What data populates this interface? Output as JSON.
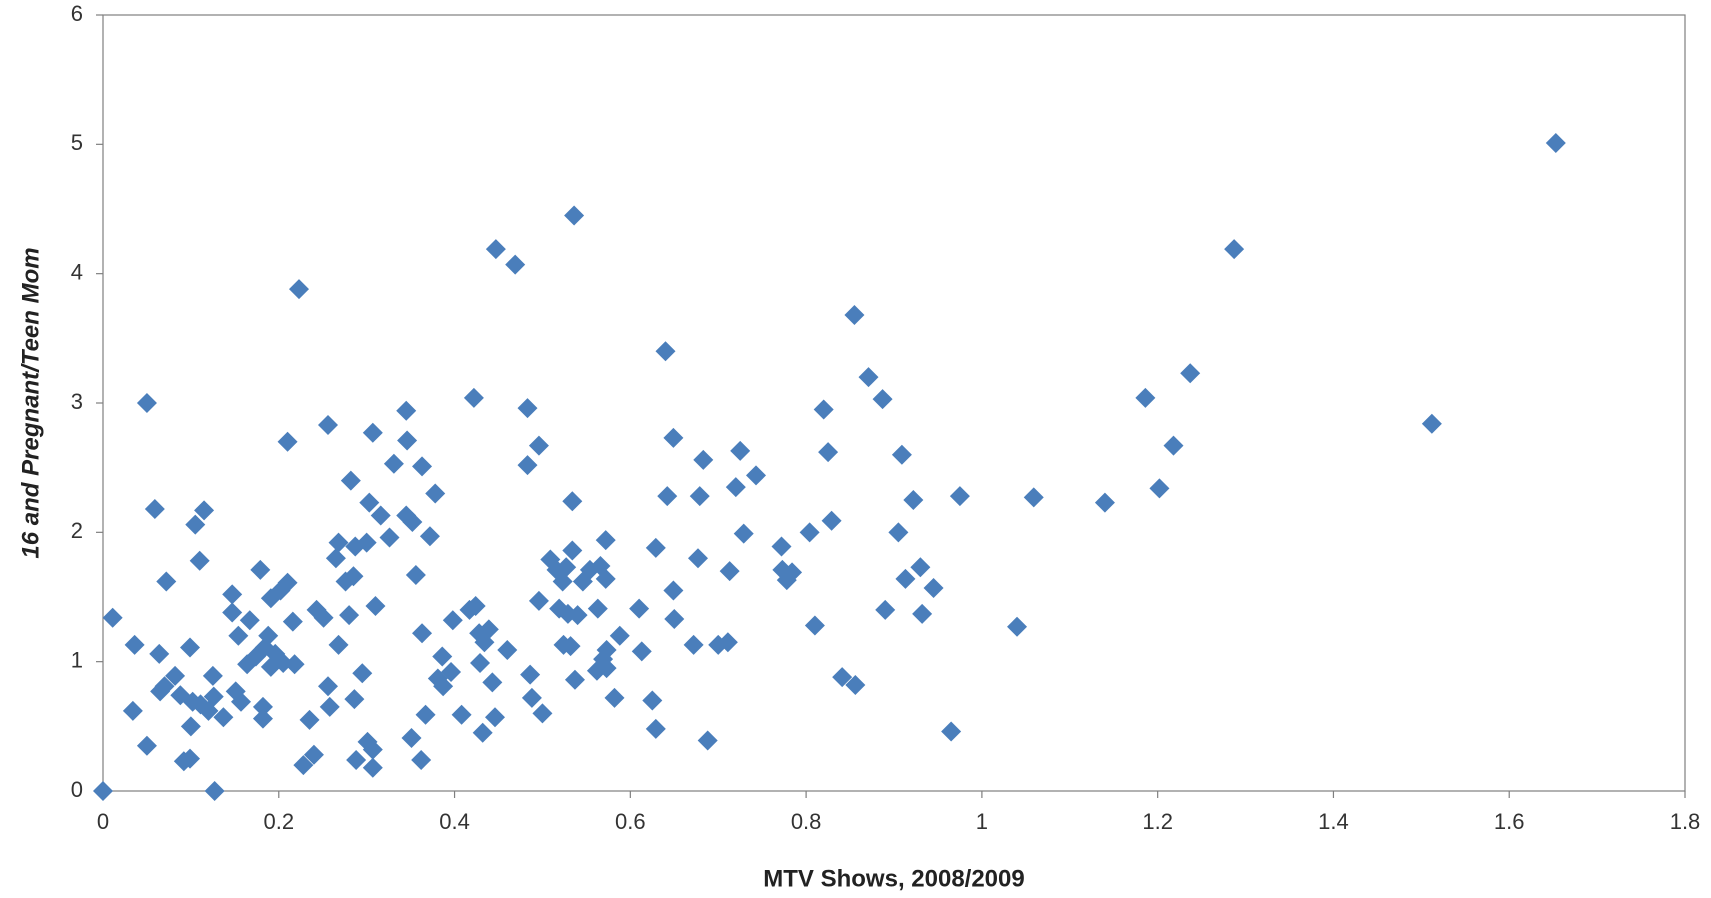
{
  "chart_data": {
    "type": "scatter",
    "x_label": "MTV Shows, 2008/2009",
    "y_label": "16 and Pregnant/Teen Mom",
    "color": "#4a7ebb",
    "xlim": [
      0,
      1.8
    ],
    "xticks": [
      0,
      0.2,
      0.4,
      0.6,
      0.8,
      1,
      1.2,
      1.4,
      1.6,
      1.8
    ],
    "ylim": [
      0,
      6
    ],
    "yticks": [
      0,
      1,
      2,
      3,
      4,
      5,
      6
    ],
    "x": [
      0,
      0.011,
      0.036,
      0.034,
      0.05,
      0.05,
      0.059,
      0.064,
      0.065,
      0.072,
      0.07,
      0.082,
      0.088,
      0.092,
      0.099,
      0.099,
      0.1,
      0.105,
      0.11,
      0.115,
      0.102,
      0.111,
      0.12,
      0.125,
      0.127,
      0.126,
      0.137,
      0.147,
      0.147,
      0.151,
      0.154,
      0.157,
      0.164,
      0.167,
      0.174,
      0.179,
      0.182,
      0.182,
      0.184,
      0.188,
      0.191,
      0.191,
      0.196,
      0.202,
      0.205,
      0.21,
      0.21,
      0.216,
      0.218,
      0.223,
      0.228,
      0.235,
      0.24,
      0.243,
      0.251,
      0.256,
      0.256,
      0.258,
      0.265,
      0.268,
      0.268,
      0.276,
      0.28,
      0.282,
      0.285,
      0.286,
      0.287,
      0.288,
      0.295,
      0.3,
      0.301,
      0.303,
      0.307,
      0.307,
      0.307,
      0.31,
      0.316,
      0.326,
      0.331,
      0.345,
      0.346,
      0.345,
      0.352,
      0.351,
      0.356,
      0.363,
      0.363,
      0.362,
      0.367,
      0.372,
      0.378,
      0.381,
      0.386,
      0.387,
      0.396,
      0.398,
      0.408,
      0.417,
      0.422,
      0.424,
      0.428,
      0.429,
      0.432,
      0.434,
      0.439,
      0.443,
      0.446,
      0.447,
      0.46,
      0.469,
      0.483,
      0.483,
      0.486,
      0.488,
      0.496,
      0.496,
      0.5,
      0.509,
      0.516,
      0.519,
      0.523,
      0.524,
      0.527,
      0.529,
      0.532,
      0.534,
      0.534,
      0.536,
      0.537,
      0.54,
      0.546,
      0.554,
      0.562,
      0.563,
      0.566,
      0.569,
      0.572,
      0.572,
      0.573,
      0.573,
      0.582,
      0.588,
      0.61,
      0.613,
      0.625,
      0.629,
      0.629,
      0.64,
      0.642,
      0.649,
      0.649,
      0.65,
      0.672,
      0.677,
      0.679,
      0.683,
      0.688,
      0.7,
      0.711,
      0.713,
      0.72,
      0.725,
      0.729,
      0.743,
      0.772,
      0.773,
      0.778,
      0.784,
      0.804,
      0.81,
      0.82,
      0.825,
      0.829,
      0.841,
      0.855,
      0.856,
      0.871,
      0.887,
      0.89,
      0.905,
      0.909,
      0.913,
      0.922,
      0.93,
      0.932,
      0.945,
      0.965,
      0.975,
      1.04,
      1.059,
      1.14,
      1.186,
      1.202,
      1.218,
      1.237,
      1.287,
      1.512,
      1.653
    ],
    "y": [
      0,
      1.34,
      1.13,
      0.62,
      3.0,
      0.35,
      2.18,
      1.06,
      0.77,
      1.62,
      0.81,
      0.89,
      0.74,
      0.23,
      1.11,
      0.25,
      0.5,
      2.06,
      1.78,
      2.17,
      0.69,
      0.67,
      0.62,
      0.89,
      0,
      0.73,
      0.57,
      1.52,
      1.38,
      0.77,
      1.2,
      0.69,
      0.98,
      1.32,
      1.04,
      1.71,
      0.65,
      0.56,
      1.11,
      1.2,
      1.49,
      0.96,
      1.06,
      1.55,
      0.99,
      1.61,
      2.7,
      1.31,
      0.98,
      3.88,
      0.2,
      0.55,
      0.28,
      1.4,
      1.34,
      2.83,
      0.81,
      0.65,
      1.8,
      1.92,
      1.13,
      1.62,
      1.36,
      2.4,
      1.66,
      0.71,
      1.89,
      0.24,
      0.91,
      1.92,
      0.38,
      2.23,
      2.77,
      0.32,
      0.18,
      1.43,
      2.13,
      1.96,
      2.53,
      2.94,
      2.71,
      2.13,
      2.08,
      0.41,
      1.67,
      2.51,
      1.22,
      0.24,
      0.59,
      1.97,
      2.3,
      0.87,
      1.04,
      0.81,
      0.92,
      1.32,
      0.59,
      1.4,
      3.04,
      1.43,
      1.22,
      0.99,
      0.45,
      1.15,
      1.25,
      0.84,
      0.57,
      4.19,
      1.09,
      4.07,
      2.96,
      2.52,
      0.9,
      0.72,
      2.67,
      1.47,
      0.6,
      1.79,
      1.71,
      1.41,
      1.62,
      1.13,
      1.73,
      1.37,
      1.12,
      2.24,
      1.86,
      4.45,
      0.86,
      1.36,
      1.62,
      1.71,
      0.93,
      1.41,
      1.74,
      1.02,
      1.94,
      1.64,
      1.09,
      0.95,
      0.72,
      1.2,
      1.41,
      1.08,
      0.7,
      1.88,
      0.48,
      3.4,
      2.28,
      2.73,
      1.55,
      1.33,
      1.13,
      1.8,
      2.28,
      2.56,
      0.39,
      1.13,
      1.15,
      1.7,
      2.35,
      2.63,
      1.99,
      2.44,
      1.89,
      1.71,
      1.63,
      1.69,
      2.0,
      1.28,
      2.95,
      2.62,
      2.09,
      0.88,
      3.68,
      0.82,
      3.2,
      3.03,
      1.4,
      2.0,
      2.6,
      1.64,
      2.25,
      1.73,
      1.37,
      1.57,
      0.46,
      2.28,
      1.27,
      2.27,
      2.23,
      3.04,
      2.34,
      2.67,
      3.23,
      4.19,
      2.84,
      5.01
    ]
  }
}
